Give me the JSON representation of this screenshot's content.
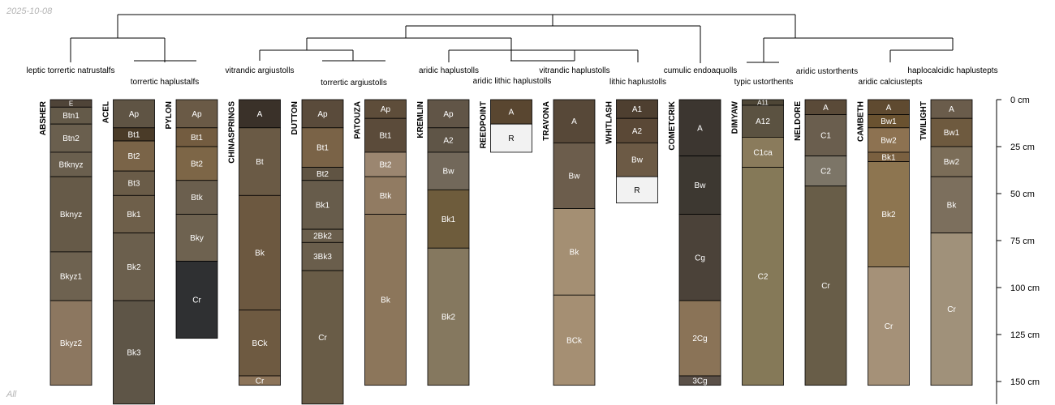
{
  "date_stamp": "2025-10-08",
  "footer_label": "All",
  "chart_data": {
    "type": "soil-profile-sketch",
    "title": "",
    "depth_unit": "cm",
    "depth_axis": {
      "ticks": [
        0,
        25,
        50,
        75,
        100,
        125,
        150
      ],
      "tick_labels": [
        "0 cm",
        "25 cm",
        "50 cm",
        "75 cm",
        "100 cm",
        "125 cm",
        "150 cm"
      ],
      "range": [
        0,
        162
      ]
    },
    "dendrogram": {
      "taxa": [
        "leptic torrertic natrustalfs",
        "torrertic haplustalfs",
        "vitrandic argiustolls",
        "torrertic argiustolls",
        "aridic haplustolls",
        "aridic lithic haplustolls",
        "vitrandic haplustolls",
        "lithic haplustolls",
        "cumulic endoaquolls",
        "typic ustorthents",
        "aridic ustorthents",
        "aridic calciustepts",
        "haplocalcidic haplustepts"
      ]
    },
    "profiles": [
      {
        "id": "ABSHER",
        "horizons": [
          {
            "name": "E",
            "top": 0,
            "bottom": 4,
            "color": "#4f4438"
          },
          {
            "name": "Btn1",
            "top": 4,
            "bottom": 13,
            "color": "#645a49"
          },
          {
            "name": "Btn2",
            "top": 13,
            "bottom": 28,
            "color": "#6a5f4e"
          },
          {
            "name": "Btknyz",
            "top": 28,
            "bottom": 41,
            "color": "#6a5f4e"
          },
          {
            "name": "Bknyz",
            "top": 41,
            "bottom": 81,
            "color": "#665a48"
          },
          {
            "name": "Bkyz1",
            "top": 81,
            "bottom": 107,
            "color": "#6e6250"
          },
          {
            "name": "Bkyz2",
            "top": 107,
            "bottom": 152,
            "color": "#8c7760"
          }
        ]
      },
      {
        "id": "ACEL",
        "horizons": [
          {
            "name": "Ap",
            "top": 0,
            "bottom": 15,
            "color": "#5f5444"
          },
          {
            "name": "Bt1",
            "top": 15,
            "bottom": 22,
            "color": "#4a3b28"
          },
          {
            "name": "Bt2",
            "top": 22,
            "bottom": 38,
            "color": "#7a6448"
          },
          {
            "name": "Bt3",
            "top": 38,
            "bottom": 51,
            "color": "#6a5c48"
          },
          {
            "name": "Bk1",
            "top": 51,
            "bottom": 71,
            "color": "#6e5f4a"
          },
          {
            "name": "Bk2",
            "top": 71,
            "bottom": 107,
            "color": "#6b5f4d"
          },
          {
            "name": "Bk3",
            "top": 107,
            "bottom": 162,
            "color": "#5e5547"
          }
        ]
      },
      {
        "id": "PYLON",
        "horizons": [
          {
            "name": "Ap",
            "top": 0,
            "bottom": 15,
            "color": "#6a5a46"
          },
          {
            "name": "Bt1",
            "top": 15,
            "bottom": 25,
            "color": "#735c40"
          },
          {
            "name": "Bt2",
            "top": 25,
            "bottom": 43,
            "color": "#7d6647"
          },
          {
            "name": "Btk",
            "top": 43,
            "bottom": 61,
            "color": "#6b5f4e"
          },
          {
            "name": "Bky",
            "top": 61,
            "bottom": 86,
            "color": "#6e6250"
          },
          {
            "name": "Cr",
            "top": 86,
            "bottom": 127,
            "color": "#2f3032"
          }
        ]
      },
      {
        "id": "CHINASPRINGS",
        "horizons": [
          {
            "name": "A",
            "top": 0,
            "bottom": 15,
            "color": "#3a3129"
          },
          {
            "name": "Bt",
            "top": 15,
            "bottom": 51,
            "color": "#6a5a45"
          },
          {
            "name": "Bk",
            "top": 51,
            "bottom": 112,
            "color": "#6c5840"
          },
          {
            "name": "BCk",
            "top": 112,
            "bottom": 147,
            "color": "#6e5a41"
          },
          {
            "name": "Cr",
            "top": 147,
            "bottom": 152,
            "color": "#8c7459"
          }
        ]
      },
      {
        "id": "DUTTON",
        "horizons": [
          {
            "name": "Ap",
            "top": 0,
            "bottom": 15,
            "color": "#5a4b3b"
          },
          {
            "name": "Bt1",
            "top": 15,
            "bottom": 36,
            "color": "#7a6347"
          },
          {
            "name": "Bt2",
            "top": 36,
            "bottom": 43,
            "color": "#605443"
          },
          {
            "name": "Bk1",
            "top": 43,
            "bottom": 69,
            "color": "#675c4b"
          },
          {
            "name": "2Bk2",
            "top": 69,
            "bottom": 76,
            "color": "#6a5e4c"
          },
          {
            "name": "3Bk3",
            "top": 76,
            "bottom": 91,
            "color": "#6a5e4c"
          },
          {
            "name": "Cr",
            "top": 91,
            "bottom": 162,
            "color": "#695c47"
          }
        ]
      },
      {
        "id": "PATOUZA",
        "horizons": [
          {
            "name": "Ap",
            "top": 0,
            "bottom": 10,
            "color": "#5e4d3a"
          },
          {
            "name": "Bt1",
            "top": 10,
            "bottom": 28,
            "color": "#5b4b3a"
          },
          {
            "name": "Bt2",
            "top": 28,
            "bottom": 41,
            "color": "#9b8670"
          },
          {
            "name": "Btk",
            "top": 41,
            "bottom": 61,
            "color": "#917b62"
          },
          {
            "name": "Bk",
            "top": 61,
            "bottom": 152,
            "color": "#8c765b"
          }
        ]
      },
      {
        "id": "KREMLIN",
        "horizons": [
          {
            "name": "Ap",
            "top": 0,
            "bottom": 15,
            "color": "#615547"
          },
          {
            "name": "A2",
            "top": 15,
            "bottom": 28,
            "color": "#5f5547"
          },
          {
            "name": "Bw",
            "top": 28,
            "bottom": 48,
            "color": "#72685a"
          },
          {
            "name": "Bk1",
            "top": 48,
            "bottom": 79,
            "color": "#6e5c3c"
          },
          {
            "name": "Bk2",
            "top": 79,
            "bottom": 152,
            "color": "#85785f"
          }
        ]
      },
      {
        "id": "REEDPOINT",
        "horizons": [
          {
            "name": "A",
            "top": 0,
            "bottom": 13,
            "color": "#594630"
          },
          {
            "name": "R",
            "top": 13,
            "bottom": 28,
            "color": "#f2f2f2"
          }
        ]
      },
      {
        "id": "TRAVONA",
        "horizons": [
          {
            "name": "A",
            "top": 0,
            "bottom": 23,
            "color": "#574838"
          },
          {
            "name": "Bw",
            "top": 23,
            "bottom": 58,
            "color": "#6c5d4c"
          },
          {
            "name": "Bk",
            "top": 58,
            "bottom": 104,
            "color": "#a48f73"
          },
          {
            "name": "BCk",
            "top": 104,
            "bottom": 152,
            "color": "#a58f73"
          }
        ]
      },
      {
        "id": "WHITLASH",
        "horizons": [
          {
            "name": "A1",
            "top": 0,
            "bottom": 10,
            "color": "#4e3f30"
          },
          {
            "name": "A2",
            "top": 10,
            "bottom": 23,
            "color": "#5a4836"
          },
          {
            "name": "Bw",
            "top": 23,
            "bottom": 41,
            "color": "#6c5a45"
          },
          {
            "name": "R",
            "top": 41,
            "bottom": 55,
            "color": "#f2f2f2"
          }
        ]
      },
      {
        "id": "COMETCRIK",
        "horizons": [
          {
            "name": "A",
            "top": 0,
            "bottom": 30,
            "color": "#3c3630"
          },
          {
            "name": "Bw",
            "top": 30,
            "bottom": 61,
            "color": "#3d3831"
          },
          {
            "name": "Cg",
            "top": 61,
            "bottom": 107,
            "color": "#4b4239"
          },
          {
            "name": "2Cg",
            "top": 107,
            "bottom": 147,
            "color": "#8a7357"
          },
          {
            "name": "3Cg",
            "top": 147,
            "bottom": 152,
            "color": "#5a5048"
          }
        ]
      },
      {
        "id": "DIMYAW",
        "horizons": [
          {
            "name": "A11",
            "top": 0,
            "bottom": 3,
            "color": "#4e4636"
          },
          {
            "name": "A12",
            "top": 3,
            "bottom": 20,
            "color": "#5b5241"
          },
          {
            "name": "C1ca",
            "top": 20,
            "bottom": 36,
            "color": "#8a7b5c"
          },
          {
            "name": "C2",
            "top": 36,
            "bottom": 152,
            "color": "#857958"
          }
        ]
      },
      {
        "id": "NELDORE",
        "horizons": [
          {
            "name": "A",
            "top": 0,
            "bottom": 8,
            "color": "#5a4a38"
          },
          {
            "name": "C1",
            "top": 8,
            "bottom": 30,
            "color": "#6a5e4e"
          },
          {
            "name": "C2",
            "top": 30,
            "bottom": 46,
            "color": "#7c7567"
          },
          {
            "name": "Cr",
            "top": 46,
            "bottom": 152,
            "color": "#685d48"
          }
        ]
      },
      {
        "id": "CAMBETH",
        "horizons": [
          {
            "name": "A",
            "top": 0,
            "bottom": 8,
            "color": "#5f4a30"
          },
          {
            "name": "Bw1",
            "top": 8,
            "bottom": 15,
            "color": "#6a5230"
          },
          {
            "name": "Bw2",
            "top": 15,
            "bottom": 28,
            "color": "#8d7251"
          },
          {
            "name": "Bk1",
            "top": 28,
            "bottom": 33,
            "color": "#7a6040"
          },
          {
            "name": "Bk2",
            "top": 33,
            "bottom": 89,
            "color": "#8d7550"
          },
          {
            "name": "Cr",
            "top": 89,
            "bottom": 152,
            "color": "#a59178"
          }
        ]
      },
      {
        "id": "TWILIGHT",
        "horizons": [
          {
            "name": "A",
            "top": 0,
            "bottom": 10,
            "color": "#6a5c4b"
          },
          {
            "name": "Bw1",
            "top": 10,
            "bottom": 25,
            "color": "#6e5a3f"
          },
          {
            "name": "Bw2",
            "top": 25,
            "bottom": 41,
            "color": "#7b6d58"
          },
          {
            "name": "Bk",
            "top": 41,
            "bottom": 71,
            "color": "#7c6f5d"
          },
          {
            "name": "Cr",
            "top": 71,
            "bottom": 152,
            "color": "#a0917a"
          }
        ]
      }
    ]
  }
}
